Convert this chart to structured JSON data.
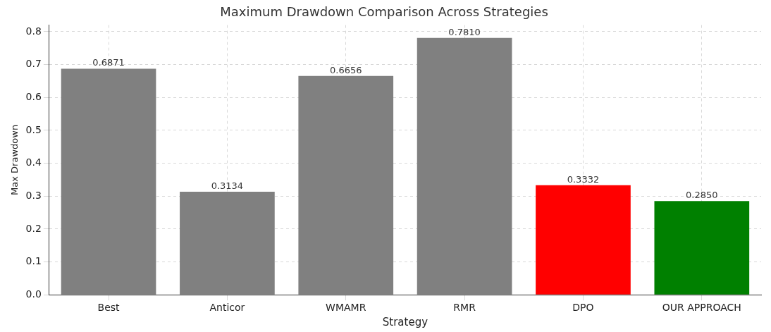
{
  "chart_data": {
    "type": "bar",
    "title": "Maximum Drawdown Comparison Across Strategies",
    "xlabel": "Strategy",
    "ylabel": "Max Drawdown",
    "categories": [
      "Best",
      "Anticor",
      "WMAMR",
      "RMR",
      "DPO",
      "OUR APPROACH"
    ],
    "values": [
      0.6871,
      0.3134,
      0.6656,
      0.781,
      0.3332,
      0.285
    ],
    "colors": [
      "#808080",
      "#808080",
      "#808080",
      "#808080",
      "#ff0000",
      "#008000"
    ],
    "value_labels": [
      "0.6871",
      "0.3134",
      "0.6656",
      "0.7810",
      "0.3332",
      "0.2850"
    ],
    "ylim": [
      0,
      0.82
    ],
    "yticks": [
      {
        "value": 0,
        "label": "0.0"
      },
      {
        "value": 0.1,
        "label": "0.1"
      },
      {
        "value": 0.2,
        "label": "0.2"
      },
      {
        "value": 0.3,
        "label": "0.3"
      },
      {
        "value": 0.4,
        "label": "0.4"
      },
      {
        "value": 0.5,
        "label": "0.5"
      },
      {
        "value": 0.6,
        "label": "0.6"
      },
      {
        "value": 0.7,
        "label": "0.7"
      },
      {
        "value": 0.8,
        "label": "0.8"
      }
    ],
    "grid": true,
    "legend": false
  }
}
